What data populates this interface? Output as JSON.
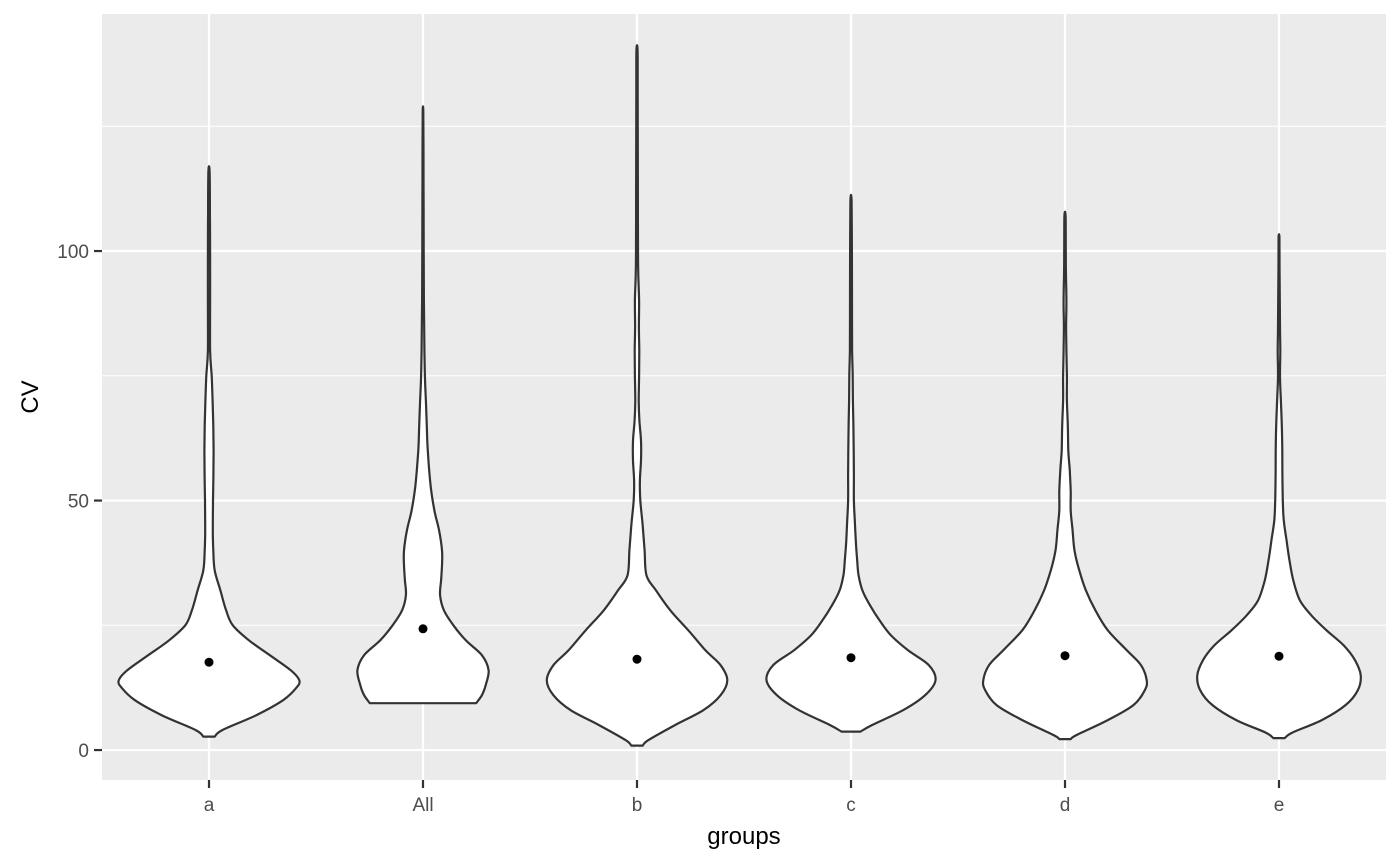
{
  "chart_data": {
    "type": "violin",
    "xlabel": "groups",
    "ylabel": "CV",
    "categories": [
      "a",
      "All",
      "b",
      "c",
      "d",
      "e"
    ],
    "ylim": [
      -6,
      147.5
    ],
    "yticks": [
      0,
      50,
      100
    ],
    "grid": true,
    "colors": {
      "panel_background": "#ebebeb",
      "grid_major": "#ffffff",
      "violin_fill": "#ffffff",
      "violin_stroke": "#333333",
      "mean_point": "#000000"
    },
    "means": [
      17.6,
      24.3,
      18.2,
      18.5,
      18.9,
      18.8
    ],
    "violins": [
      {
        "group": "a",
        "min": 2.7,
        "max": 116,
        "profile": [
          [
            2.7,
            0.06
          ],
          [
            4,
            0.14
          ],
          [
            7,
            0.5
          ],
          [
            10,
            0.78
          ],
          [
            12.5,
            0.92
          ],
          [
            14,
            0.95
          ],
          [
            16,
            0.86
          ],
          [
            19,
            0.64
          ],
          [
            22,
            0.42
          ],
          [
            25,
            0.25
          ],
          [
            28,
            0.18
          ],
          [
            32,
            0.12
          ],
          [
            36,
            0.06
          ],
          [
            40,
            0.045
          ],
          [
            44,
            0.04
          ],
          [
            50,
            0.042
          ],
          [
            55,
            0.046
          ],
          [
            60,
            0.048
          ],
          [
            65,
            0.045
          ],
          [
            70,
            0.038
          ],
          [
            75,
            0.028
          ],
          [
            80,
            0.012
          ],
          [
            90,
            0.012
          ],
          [
            100,
            0.012
          ],
          [
            108,
            0.01
          ],
          [
            116,
            0.006
          ]
        ]
      },
      {
        "group": "All",
        "min": 9.4,
        "max": 128,
        "profile": [
          [
            9.4,
            0.56
          ],
          [
            11,
            0.62
          ],
          [
            13,
            0.66
          ],
          [
            16,
            0.69
          ],
          [
            19,
            0.62
          ],
          [
            22,
            0.45
          ],
          [
            25,
            0.32
          ],
          [
            28,
            0.22
          ],
          [
            31,
            0.18
          ],
          [
            34,
            0.19
          ],
          [
            37,
            0.2
          ],
          [
            40,
            0.2
          ],
          [
            44,
            0.17
          ],
          [
            48,
            0.12
          ],
          [
            53,
            0.08
          ],
          [
            60,
            0.05
          ],
          [
            65,
            0.04
          ],
          [
            70,
            0.03
          ],
          [
            75,
            0.02
          ],
          [
            80,
            0.015
          ],
          [
            90,
            0.01
          ],
          [
            100,
            0.007
          ],
          [
            110,
            0.006
          ],
          [
            120,
            0.005
          ],
          [
            128,
            0.003
          ]
        ]
      },
      {
        "group": "b",
        "min": 0.9,
        "max": 140,
        "profile": [
          [
            0.9,
            0.06
          ],
          [
            2,
            0.12
          ],
          [
            5,
            0.4
          ],
          [
            8,
            0.7
          ],
          [
            11,
            0.88
          ],
          [
            14,
            0.95
          ],
          [
            17,
            0.88
          ],
          [
            20,
            0.72
          ],
          [
            24,
            0.54
          ],
          [
            28,
            0.35
          ],
          [
            32,
            0.2
          ],
          [
            35,
            0.1
          ],
          [
            40,
            0.08
          ],
          [
            45,
            0.06
          ],
          [
            50,
            0.035
          ],
          [
            54,
            0.03
          ],
          [
            58,
            0.042
          ],
          [
            62,
            0.042
          ],
          [
            66,
            0.025
          ],
          [
            70,
            0.018
          ],
          [
            75,
            0.022
          ],
          [
            80,
            0.024
          ],
          [
            85,
            0.02
          ],
          [
            90,
            0.022
          ],
          [
            95,
            0.014
          ],
          [
            100,
            0.01
          ],
          [
            110,
            0.009
          ],
          [
            120,
            0.008
          ],
          [
            130,
            0.007
          ],
          [
            140,
            0.006
          ]
        ]
      },
      {
        "group": "c",
        "min": 3.7,
        "max": 110,
        "profile": [
          [
            3.7,
            0.1
          ],
          [
            5,
            0.22
          ],
          [
            8,
            0.55
          ],
          [
            11,
            0.78
          ],
          [
            14,
            0.89
          ],
          [
            17,
            0.82
          ],
          [
            20,
            0.6
          ],
          [
            23,
            0.42
          ],
          [
            26,
            0.3
          ],
          [
            29,
            0.2
          ],
          [
            32,
            0.12
          ],
          [
            35,
            0.08
          ],
          [
            38,
            0.065
          ],
          [
            42,
            0.05
          ],
          [
            46,
            0.04
          ],
          [
            50,
            0.03
          ],
          [
            55,
            0.03
          ],
          [
            60,
            0.028
          ],
          [
            65,
            0.025
          ],
          [
            70,
            0.02
          ],
          [
            75,
            0.018
          ],
          [
            80,
            0.012
          ],
          [
            90,
            0.01
          ],
          [
            100,
            0.009
          ],
          [
            110,
            0.006
          ]
        ]
      },
      {
        "group": "d",
        "min": 2.2,
        "max": 107,
        "profile": [
          [
            2.2,
            0.06
          ],
          [
            3,
            0.12
          ],
          [
            6,
            0.45
          ],
          [
            9,
            0.72
          ],
          [
            12,
            0.84
          ],
          [
            14,
            0.86
          ],
          [
            17,
            0.8
          ],
          [
            20,
            0.65
          ],
          [
            24,
            0.45
          ],
          [
            28,
            0.32
          ],
          [
            32,
            0.22
          ],
          [
            36,
            0.15
          ],
          [
            40,
            0.1
          ],
          [
            44,
            0.08
          ],
          [
            48,
            0.06
          ],
          [
            52,
            0.06
          ],
          [
            56,
            0.05
          ],
          [
            60,
            0.035
          ],
          [
            65,
            0.03
          ],
          [
            70,
            0.02
          ],
          [
            75,
            0.02
          ],
          [
            80,
            0.015
          ],
          [
            85,
            0.012
          ],
          [
            90,
            0.015
          ],
          [
            95,
            0.01
          ],
          [
            100,
            0.008
          ],
          [
            107,
            0.006
          ]
        ]
      },
      {
        "group": "e",
        "min": 2.4,
        "max": 103,
        "profile": [
          [
            2.4,
            0.06
          ],
          [
            3.5,
            0.14
          ],
          [
            6,
            0.45
          ],
          [
            9,
            0.7
          ],
          [
            12,
            0.83
          ],
          [
            15,
            0.86
          ],
          [
            18,
            0.8
          ],
          [
            21,
            0.68
          ],
          [
            24,
            0.5
          ],
          [
            27,
            0.34
          ],
          [
            30,
            0.22
          ],
          [
            34,
            0.15
          ],
          [
            38,
            0.11
          ],
          [
            42,
            0.08
          ],
          [
            46,
            0.05
          ],
          [
            50,
            0.04
          ],
          [
            55,
            0.036
          ],
          [
            60,
            0.035
          ],
          [
            65,
            0.03
          ],
          [
            70,
            0.02
          ],
          [
            75,
            0.01
          ],
          [
            80,
            0.014
          ],
          [
            85,
            0.01
          ],
          [
            90,
            0.008
          ],
          [
            95,
            0.006
          ],
          [
            100,
            0.005
          ],
          [
            103,
            0.004
          ]
        ]
      }
    ]
  }
}
